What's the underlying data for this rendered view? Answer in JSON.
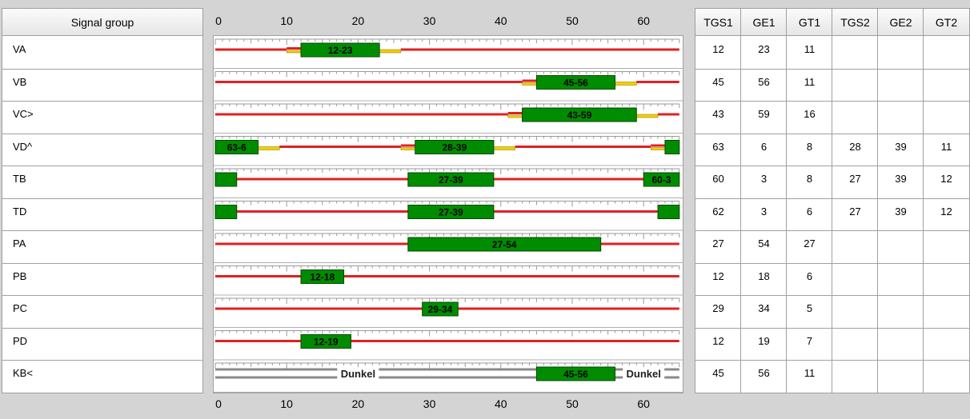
{
  "axis": {
    "min": 0,
    "max": 65,
    "major_ticks": [
      0,
      10,
      20,
      30,
      40,
      50,
      60
    ]
  },
  "left_header": "Signal group",
  "right_headers": [
    "TGS1",
    "GE1",
    "GT1",
    "TGS2",
    "GE2",
    "GT2"
  ],
  "colors": {
    "red": "#e02020",
    "green": "#008c00",
    "yellow": "#f0d000",
    "gray": "#8a8a8a"
  },
  "dark_label": "Dunkel",
  "rows": [
    {
      "name": "VA",
      "values": [
        "12",
        "23",
        "11",
        "",
        "",
        ""
      ],
      "greens": [
        {
          "s": 12,
          "e": 23,
          "label": "12-23"
        }
      ],
      "yellows": [
        {
          "s": 23,
          "e": 26
        }
      ],
      "short_reds": [
        {
          "s": 10,
          "e": 12
        }
      ],
      "reds": [
        {
          "s": 0,
          "e": 10
        },
        {
          "s": 26,
          "e": 65
        }
      ]
    },
    {
      "name": "VB",
      "values": [
        "45",
        "56",
        "11",
        "",
        "",
        ""
      ],
      "greens": [
        {
          "s": 45,
          "e": 56,
          "label": "45-56"
        }
      ],
      "yellows": [
        {
          "s": 56,
          "e": 59
        }
      ],
      "short_reds": [
        {
          "s": 43,
          "e": 45
        }
      ],
      "reds": [
        {
          "s": 0,
          "e": 43
        },
        {
          "s": 59,
          "e": 65
        }
      ]
    },
    {
      "name": "VC>",
      "values": [
        "43",
        "59",
        "16",
        "",
        "",
        ""
      ],
      "greens": [
        {
          "s": 43,
          "e": 59,
          "label": "43-59"
        }
      ],
      "yellows": [
        {
          "s": 59,
          "e": 62
        }
      ],
      "short_reds": [
        {
          "s": 41,
          "e": 43
        }
      ],
      "reds": [
        {
          "s": 0,
          "e": 41
        },
        {
          "s": 62,
          "e": 65
        }
      ]
    },
    {
      "name": "VD^",
      "values": [
        "63",
        "6",
        "8",
        "28",
        "39",
        "11"
      ],
      "greens": [
        {
          "s": 0,
          "e": 6,
          "label": "63-6"
        },
        {
          "s": 28,
          "e": 39,
          "label": "28-39"
        },
        {
          "s": 63,
          "e": 65,
          "label": ""
        }
      ],
      "yellows": [
        {
          "s": 6,
          "e": 9
        },
        {
          "s": 39,
          "e": 42
        }
      ],
      "short_reds": [
        {
          "s": 26,
          "e": 28
        },
        {
          "s": 61,
          "e": 63
        }
      ],
      "reds": [
        {
          "s": 9,
          "e": 26
        },
        {
          "s": 42,
          "e": 61
        }
      ]
    },
    {
      "name": "TB",
      "values": [
        "60",
        "3",
        "8",
        "27",
        "39",
        "12"
      ],
      "greens": [
        {
          "s": 0,
          "e": 3,
          "label": ""
        },
        {
          "s": 27,
          "e": 39,
          "label": "27-39"
        },
        {
          "s": 60,
          "e": 65,
          "label": "60-3"
        }
      ],
      "yellows": [],
      "short_reds": [],
      "reds": [
        {
          "s": 3,
          "e": 27
        },
        {
          "s": 39,
          "e": 60
        }
      ]
    },
    {
      "name": "TD",
      "values": [
        "62",
        "3",
        "6",
        "27",
        "39",
        "12"
      ],
      "greens": [
        {
          "s": 0,
          "e": 3,
          "label": ""
        },
        {
          "s": 27,
          "e": 39,
          "label": "27-39"
        },
        {
          "s": 62,
          "e": 65,
          "label": ""
        }
      ],
      "yellows": [],
      "short_reds": [],
      "reds": [
        {
          "s": 3,
          "e": 27
        },
        {
          "s": 39,
          "e": 62
        }
      ]
    },
    {
      "name": "PA",
      "values": [
        "27",
        "54",
        "27",
        "",
        "",
        ""
      ],
      "greens": [
        {
          "s": 27,
          "e": 54,
          "label": "27-54"
        }
      ],
      "yellows": [],
      "short_reds": [],
      "reds": [
        {
          "s": 0,
          "e": 27
        },
        {
          "s": 54,
          "e": 65
        }
      ]
    },
    {
      "name": "PB",
      "values": [
        "12",
        "18",
        "6",
        "",
        "",
        ""
      ],
      "greens": [
        {
          "s": 12,
          "e": 18,
          "label": "12-18"
        }
      ],
      "yellows": [],
      "short_reds": [],
      "reds": [
        {
          "s": 0,
          "e": 12
        },
        {
          "s": 18,
          "e": 65
        }
      ]
    },
    {
      "name": "PC",
      "values": [
        "29",
        "34",
        "5",
        "",
        "",
        ""
      ],
      "greens": [
        {
          "s": 29,
          "e": 34,
          "label": "29-34"
        }
      ],
      "yellows": [],
      "short_reds": [],
      "reds": [
        {
          "s": 0,
          "e": 29
        },
        {
          "s": 34,
          "e": 65
        }
      ]
    },
    {
      "name": "PD",
      "values": [
        "12",
        "19",
        "7",
        "",
        "",
        ""
      ],
      "greens": [
        {
          "s": 12,
          "e": 19,
          "label": "12-19"
        }
      ],
      "yellows": [],
      "short_reds": [],
      "reds": [
        {
          "s": 0,
          "e": 12
        },
        {
          "s": 19,
          "e": 65
        }
      ]
    },
    {
      "name": "KB<",
      "values": [
        "45",
        "56",
        "11",
        "",
        "",
        ""
      ],
      "greens": [
        {
          "s": 45,
          "e": 56,
          "label": "45-56"
        }
      ],
      "yellows": [],
      "short_reds": [],
      "reds": [],
      "dark": [
        {
          "s": 0,
          "e": 45,
          "label_at": 20
        },
        {
          "s": 56,
          "e": 65,
          "label_at": 60
        }
      ]
    }
  ]
}
